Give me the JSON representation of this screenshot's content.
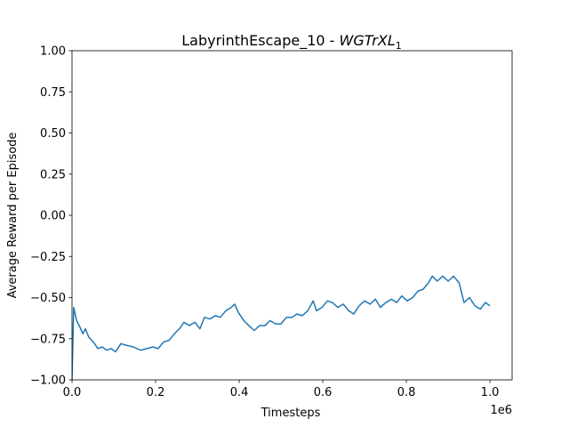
{
  "chart_data": {
    "type": "line",
    "title": [
      "LabyrinthEscape_10 - ",
      "WGTrXL",
      "1"
    ],
    "xlabel": "Timesteps",
    "ylabel": "Average Reward per Episode",
    "x_offset_label": "1e6",
    "xlim": [
      0,
      1.053
    ],
    "ylim": [
      -1,
      1
    ],
    "xticks": [
      {
        "value": 0,
        "label": "0.0"
      },
      0.2,
      0.4,
      0.6,
      0.8,
      {
        "value": 1,
        "label": "1.0"
      }
    ],
    "yticks": [
      {
        "value": -1,
        "label": "−1.00"
      },
      {
        "value": -0.75,
        "label": "−0.75"
      },
      {
        "value": -0.5,
        "label": "−0.50"
      },
      {
        "value": -0.25,
        "label": "−0.25"
      },
      {
        "value": 0,
        "label": "0.00"
      },
      {
        "value": 0.25,
        "label": "0.25"
      },
      {
        "value": 0.5,
        "label": "0.50"
      },
      {
        "value": 0.75,
        "label": "0.75"
      },
      {
        "value": 1,
        "label": "1.00"
      }
    ],
    "series": [
      {
        "color": "#1f77b4",
        "x": [
          0,
          0.004,
          0.011,
          0.019,
          0.026,
          0.032,
          0.04,
          0.051,
          0.062,
          0.072,
          0.083,
          0.094,
          0.104,
          0.117,
          0.13,
          0.147,
          0.164,
          0.179,
          0.194,
          0.206,
          0.219,
          0.232,
          0.245,
          0.257,
          0.268,
          0.281,
          0.294,
          0.306,
          0.317,
          0.33,
          0.343,
          0.355,
          0.368,
          0.381,
          0.389,
          0.398,
          0.411,
          0.423,
          0.436,
          0.449,
          0.462,
          0.474,
          0.487,
          0.5,
          0.513,
          0.526,
          0.538,
          0.551,
          0.564,
          0.577,
          0.585,
          0.598,
          0.611,
          0.623,
          0.636,
          0.649,
          0.662,
          0.674,
          0.687,
          0.7,
          0.713,
          0.726,
          0.738,
          0.751,
          0.764,
          0.777,
          0.789,
          0.802,
          0.815,
          0.828,
          0.84,
          0.853,
          0.862,
          0.874,
          0.887,
          0.9,
          0.913,
          0.926,
          0.938,
          0.951,
          0.964,
          0.977,
          0.989,
          1.0
        ],
        "values": [
          -1.0,
          -0.56,
          -0.64,
          -0.68,
          -0.72,
          -0.69,
          -0.74,
          -0.77,
          -0.81,
          -0.8,
          -0.82,
          -0.81,
          -0.83,
          -0.78,
          -0.79,
          -0.8,
          -0.82,
          -0.81,
          -0.8,
          -0.81,
          -0.77,
          -0.76,
          -0.72,
          -0.69,
          -0.65,
          -0.67,
          -0.65,
          -0.69,
          -0.62,
          -0.63,
          -0.61,
          -0.62,
          -0.58,
          -0.56,
          -0.54,
          -0.59,
          -0.64,
          -0.67,
          -0.7,
          -0.67,
          -0.67,
          -0.64,
          -0.66,
          -0.66,
          -0.62,
          -0.62,
          -0.6,
          -0.61,
          -0.58,
          -0.52,
          -0.58,
          -0.56,
          -0.52,
          -0.53,
          -0.56,
          -0.54,
          -0.58,
          -0.6,
          -0.55,
          -0.52,
          -0.54,
          -0.51,
          -0.56,
          -0.53,
          -0.51,
          -0.53,
          -0.49,
          -0.52,
          -0.5,
          -0.46,
          -0.45,
          -0.41,
          -0.37,
          -0.4,
          -0.37,
          -0.4,
          -0.37,
          -0.41,
          -0.53,
          -0.5,
          -0.55,
          -0.57,
          -0.53,
          -0.55
        ]
      }
    ]
  }
}
